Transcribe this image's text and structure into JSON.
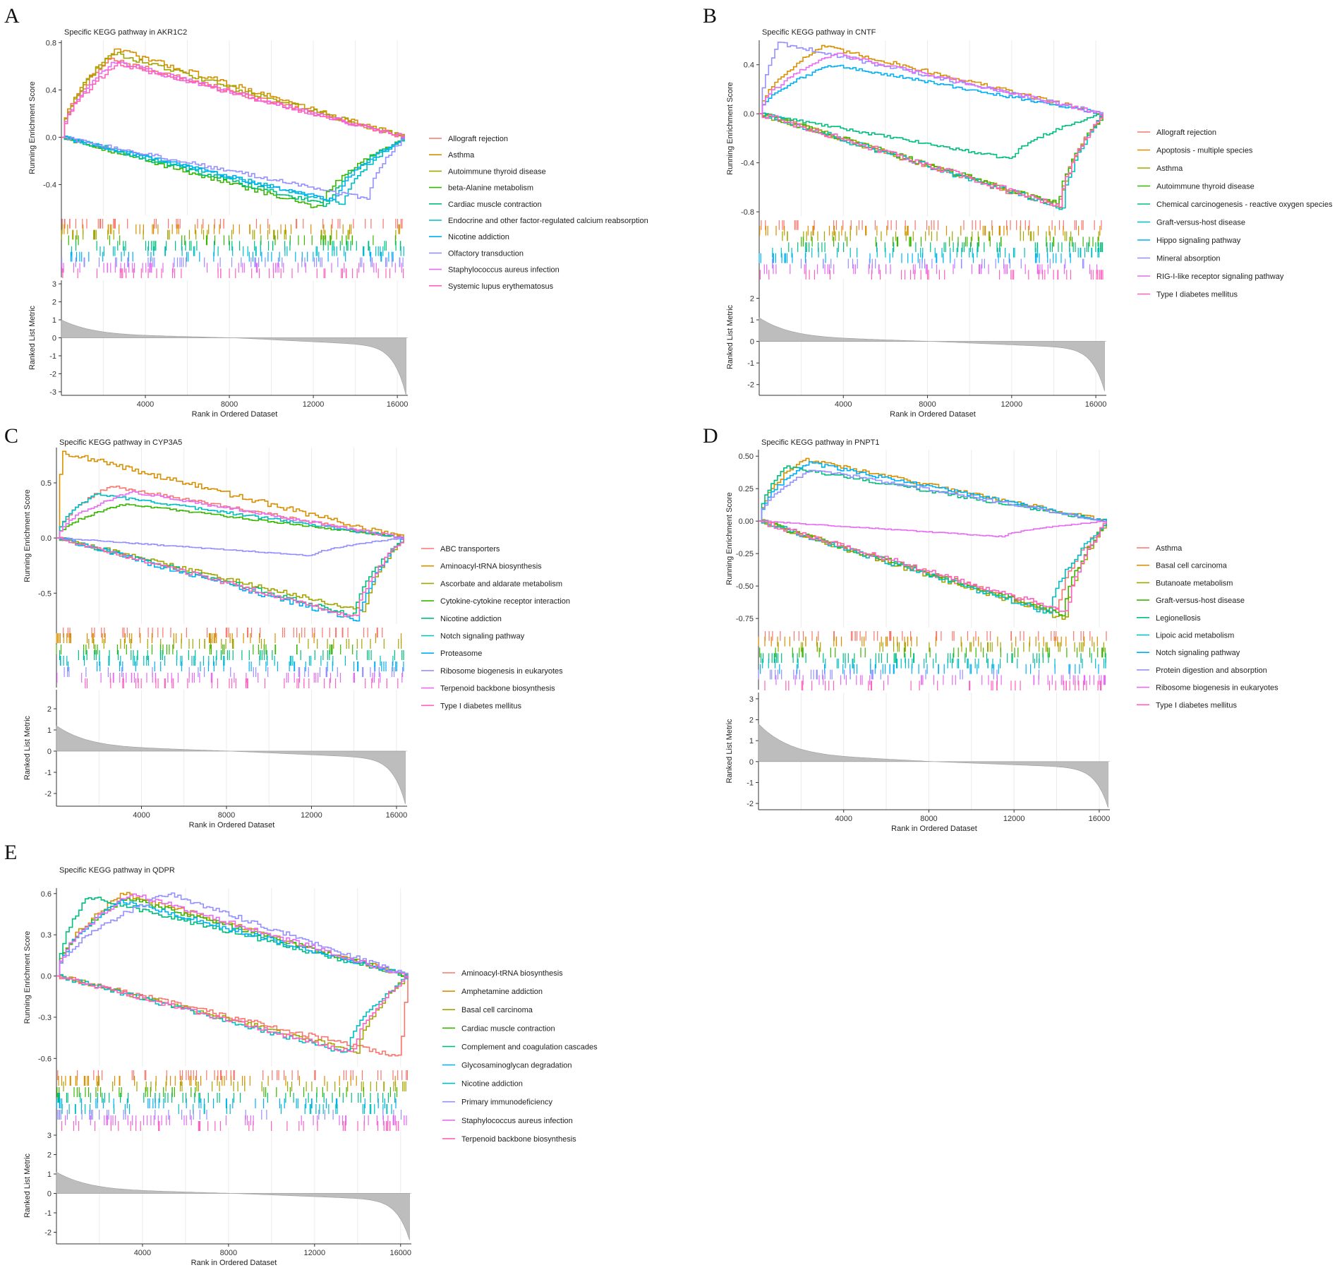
{
  "figure": {
    "panel_letters": [
      "A",
      "B",
      "C",
      "D",
      "E"
    ]
  },
  "chart_data": [
    {
      "type": "line",
      "panel": "A",
      "title": "Specific KEGG pathway in AKR1C2",
      "xlabel": "Rank in Ordered Dataset",
      "ylabel": "Running Enrichment Score",
      "ylabel_ranked": "Ranked List Metric",
      "xlim": [
        0,
        16500
      ],
      "x_ticks": [
        4000,
        8000,
        12000,
        16000
      ],
      "es_ylim": [
        -0.66,
        0.82
      ],
      "es_ticks": [
        -0.4,
        0.0,
        0.4,
        0.8
      ],
      "es_tick_labels": [
        "-0.4",
        "0.0",
        "0.4",
        "0.8"
      ],
      "rank_ylim": [
        -3.2,
        3.2
      ],
      "rank_ticks": [
        -3,
        -2,
        -1,
        0,
        1,
        2,
        3
      ],
      "rank_max": 1.0,
      "rank_min": -3.2,
      "series": [
        {
          "name": "Allograft rejection",
          "color": "#f8766d",
          "peak": 0.66,
          "peak_x": 2300,
          "end": 0.0
        },
        {
          "name": "Asthma",
          "color": "#d89000",
          "peak": 0.74,
          "peak_x": 2600,
          "end": 0.0
        },
        {
          "name": "Autoimmune thyroid disease",
          "color": "#a3a500",
          "peak": 0.71,
          "peak_x": 2400,
          "end": 0.0
        },
        {
          "name": "beta-Alanine metabolism",
          "color": "#39b600",
          "peak": -0.6,
          "peak_x": 12300,
          "end": 0.0
        },
        {
          "name": "Cardiac muscle contraction",
          "color": "#00bf7d",
          "peak": -0.58,
          "peak_x": 12700,
          "end": 0.0
        },
        {
          "name": "Endocrine and other factor-regulated calcium reabsorption",
          "color": "#00bfc4",
          "peak": -0.56,
          "peak_x": 13400,
          "end": 0.0
        },
        {
          "name": "Nicotine addiction",
          "color": "#00b0f6",
          "peak": -0.54,
          "peak_x": 13000,
          "end": 0.0
        },
        {
          "name": "Olfactory transduction",
          "color": "#9590ff",
          "peak": -0.52,
          "peak_x": 14600,
          "end": 0.0
        },
        {
          "name": "Staphylococcus aureus infection",
          "color": "#e76bf3",
          "peak": 0.64,
          "peak_x": 2500,
          "end": 0.0
        },
        {
          "name": "Systemic lupus erythematosus",
          "color": "#ff62bc",
          "peak": 0.62,
          "peak_x": 2700,
          "end": 0.0
        }
      ]
    },
    {
      "type": "line",
      "panel": "B",
      "title": "Specific KEGG pathway in CNTF",
      "xlabel": "Rank in Ordered Dataset",
      "ylabel": "Running Enrichment Score",
      "ylabel_ranked": "Ranked List Metric",
      "xlim": [
        0,
        16500
      ],
      "x_ticks": [
        4000,
        8000,
        12000,
        16000
      ],
      "es_ylim": [
        -0.84,
        0.6
      ],
      "es_ticks": [
        -0.8,
        -0.4,
        0.0,
        0.4
      ],
      "es_tick_labels": [
        "-0.8",
        "-0.4",
        "0.0",
        "0.4"
      ],
      "rank_ylim": [
        -2.5,
        2.9
      ],
      "rank_ticks": [
        -2,
        -1,
        0,
        1,
        2
      ],
      "rank_max": 1.1,
      "rank_min": -2.3,
      "series": [
        {
          "name": "Allograft rejection",
          "color": "#f8766d",
          "peak": -0.76,
          "peak_x": 14200,
          "end": 0.0
        },
        {
          "name": "Apoptosis - multiple species",
          "color": "#d89000",
          "peak": 0.55,
          "peak_x": 3000,
          "end": 0.0
        },
        {
          "name": "Asthma",
          "color": "#a3a500",
          "peak": -0.75,
          "peak_x": 14300,
          "end": 0.0
        },
        {
          "name": "Autoimmune thyroid disease",
          "color": "#39b600",
          "peak": -0.74,
          "peak_x": 14200,
          "end": 0.0
        },
        {
          "name": "Chemical carcinogenesis - reactive oxygen species",
          "color": "#00bf7d",
          "peak": -0.37,
          "peak_x": 12000,
          "end": 0.0
        },
        {
          "name": "Graft-versus-host disease",
          "color": "#00bfc4",
          "peak": -0.77,
          "peak_x": 14400,
          "end": 0.0
        },
        {
          "name": "Hippo signaling pathway",
          "color": "#00b0f6",
          "peak": 0.4,
          "peak_x": 3500,
          "end": 0.0
        },
        {
          "name": "Mineral absorption",
          "color": "#9590ff",
          "peak": 0.58,
          "peak_x": 900,
          "end": 0.0
        },
        {
          "name": "RIG-I-like receptor signaling pathway",
          "color": "#e76bf3",
          "peak": 0.49,
          "peak_x": 3600,
          "end": 0.0
        },
        {
          "name": "Type I diabetes mellitus",
          "color": "#ff62bc",
          "peak": -0.75,
          "peak_x": 14300,
          "end": 0.0
        }
      ]
    },
    {
      "type": "line",
      "panel": "C",
      "title": "Specific KEGG pathway in CYP3A5",
      "xlabel": "Rank in Ordered Dataset",
      "ylabel": "Running Enrichment Score",
      "ylabel_ranked": "Ranked List Metric",
      "xlim": [
        0,
        16500
      ],
      "x_ticks": [
        4000,
        8000,
        12000,
        16000
      ],
      "es_ylim": [
        -0.78,
        0.82
      ],
      "es_ticks": [
        -0.5,
        0.0,
        0.5
      ],
      "es_tick_labels": [
        "-0.5",
        "0.0",
        "0.5"
      ],
      "rank_ylim": [
        -2.6,
        2.9
      ],
      "rank_ticks": [
        -2,
        -1,
        0,
        1,
        2
      ],
      "rank_max": 1.2,
      "rank_min": -2.5,
      "series": [
        {
          "name": "ABC transporters",
          "color": "#f8766d",
          "peak": 0.47,
          "peak_x": 2500,
          "end": 0.0
        },
        {
          "name": "Aminoacyl-tRNA biosynthesis",
          "color": "#d89000",
          "peak": 0.78,
          "peak_x": 250,
          "end": 0.0
        },
        {
          "name": "Ascorbate and aldarate metabolism",
          "color": "#a3a500",
          "peak": -0.67,
          "peak_x": 14500,
          "end": 0.0
        },
        {
          "name": "Cytokine-cytokine receptor interaction",
          "color": "#39b600",
          "peak": 0.31,
          "peak_x": 3200,
          "end": 0.0
        },
        {
          "name": "Nicotine addiction",
          "color": "#00bf7d",
          "peak": -0.7,
          "peak_x": 14000,
          "end": 0.0
        },
        {
          "name": "Notch signaling pathway",
          "color": "#00bfc4",
          "peak": 0.4,
          "peak_x": 1800,
          "end": 0.0
        },
        {
          "name": "Proteasome",
          "color": "#00b0f6",
          "peak": -0.75,
          "peak_x": 14200,
          "end": 0.0
        },
        {
          "name": "Ribosome biogenesis in eukaryotes",
          "color": "#9590ff",
          "peak": -0.16,
          "peak_x": 12000,
          "end": 0.0
        },
        {
          "name": "Terpenoid backbone biosynthesis",
          "color": "#e76bf3",
          "peak": 0.42,
          "peak_x": 3500,
          "end": 0.0
        },
        {
          "name": "Type I diabetes mellitus",
          "color": "#ff62bc",
          "peak": -0.72,
          "peak_x": 14100,
          "end": 0.0
        }
      ]
    },
    {
      "type": "line",
      "panel": "D",
      "title": "Specific KEGG pathway in PNPT1",
      "xlabel": "Rank in Ordered Dataset",
      "ylabel": "Running Enrichment Score",
      "ylabel_ranked": "Ranked List Metric",
      "xlim": [
        0,
        16500
      ],
      "x_ticks": [
        4000,
        8000,
        12000,
        16000
      ],
      "es_ylim": [
        -0.82,
        0.55
      ],
      "es_ticks": [
        -0.75,
        -0.5,
        -0.25,
        0.0,
        0.25,
        0.5
      ],
      "es_tick_labels": [
        "-0.75",
        "-0.50",
        "-0.25",
        "0.00",
        "0.25",
        "0.50"
      ],
      "rank_ylim": [
        -2.3,
        3.3
      ],
      "rank_ticks": [
        -2,
        -1,
        0,
        1,
        2,
        3
      ],
      "rank_max": 1.8,
      "rank_min": -2.2,
      "series": [
        {
          "name": "Asthma",
          "color": "#f8766d",
          "peak": -0.7,
          "peak_x": 14000,
          "end": 0.0
        },
        {
          "name": "Basal cell carcinoma",
          "color": "#d89000",
          "peak": 0.48,
          "peak_x": 2000,
          "end": 0.0
        },
        {
          "name": "Butanoate metabolism",
          "color": "#a3a500",
          "peak": -0.75,
          "peak_x": 14400,
          "end": 0.0
        },
        {
          "name": "Graft-versus-host disease",
          "color": "#39b600",
          "peak": -0.72,
          "peak_x": 14300,
          "end": 0.0
        },
        {
          "name": "Legionellosis",
          "color": "#00bf7d",
          "peak": 0.42,
          "peak_x": 1200,
          "end": 0.0
        },
        {
          "name": "Lipoic acid metabolism",
          "color": "#00bfc4",
          "peak": -0.71,
          "peak_x": 13700,
          "end": 0.0
        },
        {
          "name": "Notch signaling pathway",
          "color": "#00b0f6",
          "peak": 0.45,
          "peak_x": 2300,
          "end": 0.0
        },
        {
          "name": "Protein digestion and absorption",
          "color": "#9590ff",
          "peak": 0.4,
          "peak_x": 2500,
          "end": 0.0
        },
        {
          "name": "Ribosome biogenesis in eukaryotes",
          "color": "#e76bf3",
          "peak": -0.12,
          "peak_x": 11500,
          "end": 0.0
        },
        {
          "name": "Type I diabetes mellitus",
          "color": "#ff62bc",
          "peak": -0.7,
          "peak_x": 14500,
          "end": 0.0
        }
      ]
    },
    {
      "type": "line",
      "panel": "E",
      "title": "Specific KEGG pathway in QDPR",
      "xlabel": "Rank in Ordered Dataset",
      "ylabel": "Running Enrichment Score",
      "ylabel_ranked": "Ranked List Metric",
      "xlim": [
        0,
        16500
      ],
      "x_ticks": [
        4000,
        8000,
        12000,
        16000
      ],
      "es_ylim": [
        -0.66,
        0.64
      ],
      "es_ticks": [
        -0.6,
        -0.3,
        0.0,
        0.3,
        0.6
      ],
      "es_tick_labels": [
        "-0.6",
        "-0.3",
        "0.0",
        "0.3",
        "0.6"
      ],
      "rank_ylim": [
        -2.6,
        3.4
      ],
      "rank_ticks": [
        -2,
        -1,
        0,
        1,
        2,
        3
      ],
      "rank_max": 1.1,
      "rank_min": -2.4,
      "series": [
        {
          "name": "Aminoacyl-tRNA biosynthesis",
          "color": "#f8766d",
          "peak": -0.59,
          "peak_x": 16000,
          "end": 0.0
        },
        {
          "name": "Amphetamine addiction",
          "color": "#d89000",
          "peak": 0.6,
          "peak_x": 3100,
          "end": 0.0
        },
        {
          "name": "Basal cell carcinoma",
          "color": "#a3a500",
          "peak": -0.55,
          "peak_x": 14000,
          "end": 0.0
        },
        {
          "name": "Cardiac muscle contraction",
          "color": "#39b600",
          "peak": 0.57,
          "peak_x": 3200,
          "end": 0.0
        },
        {
          "name": "Complement and coagulation cascades",
          "color": "#00bf7d",
          "peak": 0.58,
          "peak_x": 1400,
          "end": 0.0
        },
        {
          "name": "Glycosaminoglycan degradation",
          "color": "#00b0f6",
          "peak": 0.55,
          "peak_x": 3000,
          "end": 0.0
        },
        {
          "name": "Nicotine addiction",
          "color": "#00bfc4",
          "peak": -0.56,
          "peak_x": 13500,
          "end": 0.0
        },
        {
          "name": "Primary immunodeficiency",
          "color": "#9590ff",
          "peak": 0.6,
          "peak_x": 5200,
          "end": 0.0
        },
        {
          "name": "Staphylococcus aureus infection",
          "color": "#e76bf3",
          "peak": 0.6,
          "peak_x": 3500,
          "end": 0.0
        },
        {
          "name": "Terpenoid backbone biosynthesis",
          "color": "#ff62bc",
          "peak": -0.56,
          "peak_x": 13800,
          "end": 0.0
        }
      ]
    }
  ]
}
